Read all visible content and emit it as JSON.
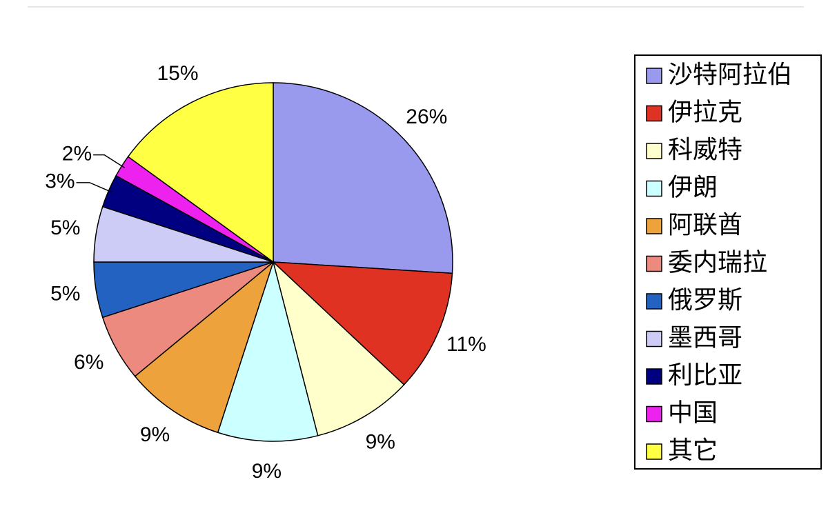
{
  "chart_data": {
    "type": "pie",
    "categories": [
      "沙特阿拉伯",
      "伊拉克",
      "科威特",
      "伊朗",
      "阿联酋",
      "委内瑞拉",
      "俄罗斯",
      "墨西哥",
      "利比亚",
      "中国",
      "其它"
    ],
    "values": [
      26,
      11,
      9,
      9,
      9,
      6,
      5,
      5,
      3,
      2,
      15
    ],
    "value_labels": [
      "26%",
      "11%",
      "9%",
      "9%",
      "9%",
      "6%",
      "5%",
      "5%",
      "3%",
      "2%",
      "15%"
    ],
    "colors": [
      "#9999ee",
      "#e03222",
      "#ffffcc",
      "#ccffff",
      "#eea23c",
      "#ec8a80",
      "#2462c2",
      "#ccccf6",
      "#000080",
      "#ee22ee",
      "#ffff44"
    ],
    "legend": "right"
  }
}
